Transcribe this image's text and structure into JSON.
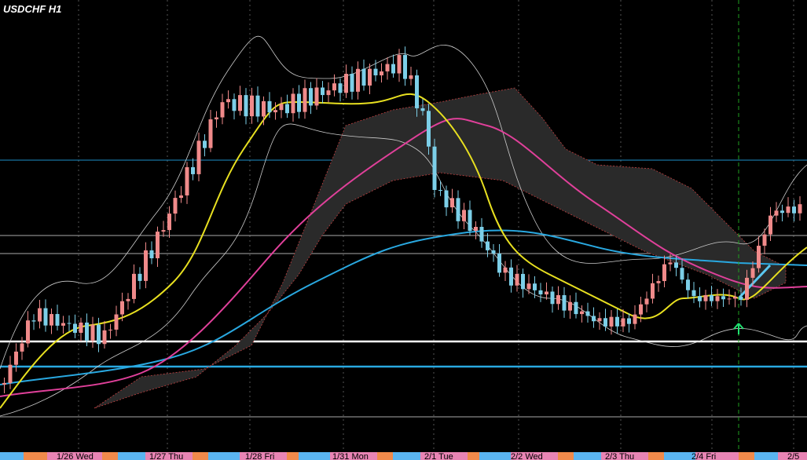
{
  "header": {
    "title": "USDCHF H1"
  },
  "time_axis": {
    "labels": [
      "1/26 Wed",
      "1/27 Thu",
      "1/28 Fri",
      "1/31 Mon",
      "2/1 Tue",
      "2/2 Wed",
      "2/3 Thu",
      "2/4 Fri",
      "2/5"
    ]
  }
}
